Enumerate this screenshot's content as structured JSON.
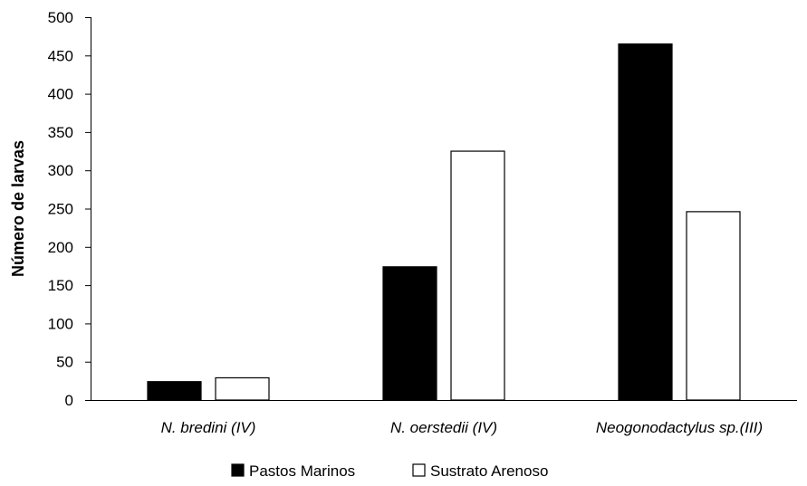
{
  "chart_data": {
    "type": "bar",
    "categories": [
      "N. bredini (IV)",
      "N. oerstedii (IV)",
      "Neogonodactylus sp.(III)"
    ],
    "series": [
      {
        "name": "Pastos Marinos",
        "values": [
          24,
          174,
          465
        ],
        "color": "#000000"
      },
      {
        "name": "Sustrato Arenoso",
        "values": [
          29,
          325,
          246
        ],
        "color": "#ffffff"
      }
    ],
    "ylabel": "Número de larvas",
    "xlabel": "",
    "ylim": [
      0,
      500
    ],
    "yticks": [
      0,
      50,
      100,
      150,
      200,
      250,
      300,
      350,
      400,
      450,
      500
    ],
    "grid": false,
    "legend_position": "bottom-center"
  }
}
